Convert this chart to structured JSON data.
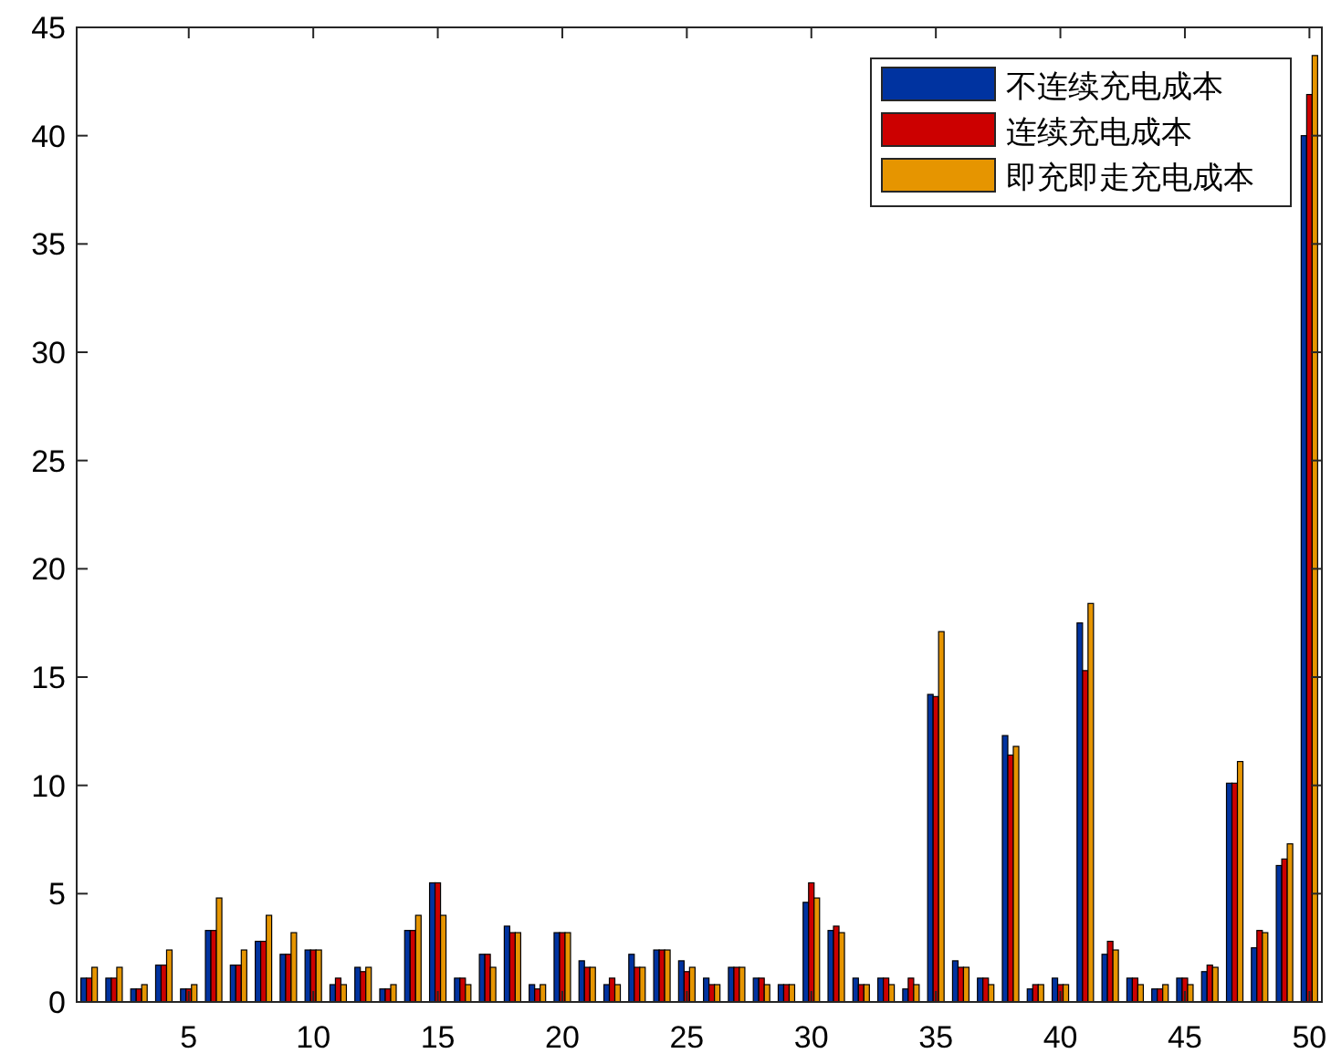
{
  "chart_data": {
    "type": "bar",
    "x": [
      1,
      2,
      3,
      4,
      5,
      6,
      7,
      8,
      9,
      10,
      11,
      12,
      13,
      14,
      15,
      16,
      17,
      18,
      19,
      20,
      21,
      22,
      23,
      24,
      25,
      26,
      27,
      28,
      29,
      30,
      31,
      32,
      33,
      34,
      35,
      36,
      37,
      38,
      39,
      40,
      41,
      42,
      43,
      44,
      45,
      46,
      47,
      48,
      49,
      50
    ],
    "xlim": [
      0.5,
      50.5
    ],
    "xticks": [
      5,
      10,
      15,
      20,
      25,
      30,
      35,
      40,
      45,
      50
    ],
    "ylim": [
      0,
      45
    ],
    "yticks": [
      0,
      5,
      10,
      15,
      20,
      25,
      30,
      35,
      40,
      45
    ],
    "legend": "top right",
    "series": [
      {
        "name": "不连续充电成本",
        "color": "#0033a0",
        "values": [
          1.1,
          1.1,
          0.6,
          1.7,
          0.6,
          3.3,
          1.7,
          2.8,
          2.2,
          2.4,
          0.8,
          1.6,
          0.6,
          3.3,
          5.5,
          1.1,
          2.2,
          3.5,
          0.8,
          3.2,
          1.9,
          0.8,
          2.2,
          2.4,
          1.9,
          1.1,
          1.6,
          1.1,
          0.8,
          4.6,
          3.3,
          1.1,
          1.1,
          0.6,
          14.2,
          1.9,
          1.1,
          12.3,
          0.6,
          1.1,
          17.5,
          2.2,
          1.1,
          0.6,
          1.1,
          1.4,
          10.1,
          2.5,
          6.3,
          40.0
        ]
      },
      {
        "name": "连续充电成本",
        "color": "#cc0000",
        "values": [
          1.1,
          1.1,
          0.6,
          1.7,
          0.6,
          3.3,
          1.7,
          2.8,
          2.2,
          2.4,
          1.1,
          1.4,
          0.6,
          3.3,
          5.5,
          1.1,
          2.2,
          3.2,
          0.6,
          3.2,
          1.6,
          1.1,
          1.6,
          2.4,
          1.4,
          0.8,
          1.6,
          1.1,
          0.8,
          5.5,
          3.5,
          0.8,
          1.1,
          1.1,
          14.1,
          1.6,
          1.1,
          11.4,
          0.8,
          0.8,
          15.3,
          2.8,
          1.1,
          0.6,
          1.1,
          1.7,
          10.1,
          3.3,
          6.6,
          41.9
        ]
      },
      {
        "name": "即充即走充电成本",
        "color": "#e69500",
        "values": [
          1.6,
          1.6,
          0.8,
          2.4,
          0.8,
          4.8,
          2.4,
          4.0,
          3.2,
          2.4,
          0.8,
          1.6,
          0.8,
          4.0,
          4.0,
          0.8,
          1.6,
          3.2,
          0.8,
          3.2,
          1.6,
          0.8,
          1.6,
          2.4,
          1.6,
          0.8,
          1.6,
          0.8,
          0.8,
          4.8,
          3.2,
          0.8,
          0.8,
          0.8,
          17.1,
          1.6,
          0.8,
          11.8,
          0.8,
          0.8,
          18.4,
          2.4,
          0.8,
          0.8,
          0.8,
          1.6,
          11.1,
          3.2,
          7.3,
          43.7
        ]
      }
    ]
  }
}
